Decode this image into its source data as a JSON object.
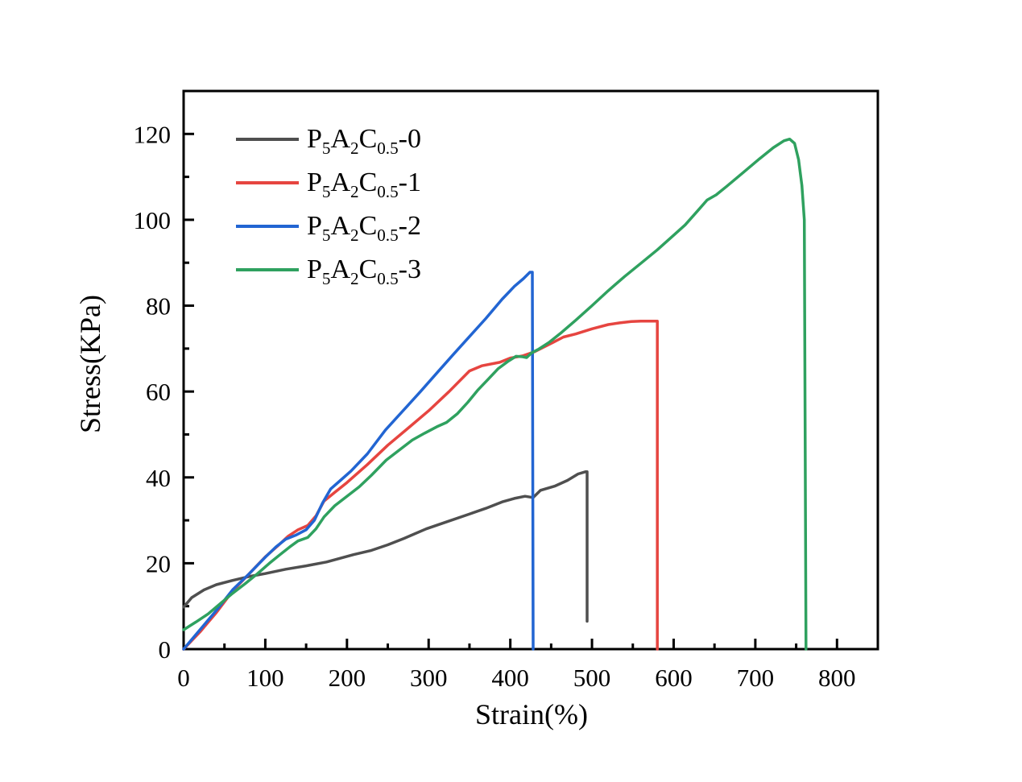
{
  "chart_data": {
    "type": "line",
    "title": "",
    "xlabel": "Strain(%)",
    "ylabel": "Stress(KPa)",
    "xlim": [
      0,
      850
    ],
    "ylim": [
      0,
      130
    ],
    "x_major_ticks": [
      0,
      100,
      200,
      300,
      400,
      500,
      600,
      700,
      800
    ],
    "x_minor_step": 50,
    "y_major_ticks": [
      0,
      20,
      40,
      60,
      80,
      100,
      120
    ],
    "y_minor_step": 10,
    "grid": false,
    "legend_position": "top-left-inside",
    "axis_color": "#000000",
    "series": [
      {
        "name": "P5A2C0.5-0",
        "label_parts": [
          [
            "P",
            "5"
          ],
          [
            "A",
            "2"
          ],
          [
            "C",
            "0.5"
          ],
          [
            "-0",
            null
          ]
        ],
        "color": "#4f4f4f",
        "points": [
          [
            0,
            9.8
          ],
          [
            10,
            12
          ],
          [
            25,
            13.8
          ],
          [
            40,
            15
          ],
          [
            60,
            16
          ],
          [
            80,
            16.9
          ],
          [
            100,
            17.6
          ],
          [
            125,
            18.6
          ],
          [
            150,
            19.4
          ],
          [
            175,
            20.3
          ],
          [
            208,
            22
          ],
          [
            230,
            23
          ],
          [
            250,
            24.3
          ],
          [
            270,
            25.8
          ],
          [
            297,
            28
          ],
          [
            320,
            29.5
          ],
          [
            349,
            31.4
          ],
          [
            370,
            32.8
          ],
          [
            390,
            34.3
          ],
          [
            405,
            35.1
          ],
          [
            418,
            35.6
          ],
          [
            428,
            35.3
          ],
          [
            437,
            37
          ],
          [
            455,
            38
          ],
          [
            470,
            39.3
          ],
          [
            483,
            40.8
          ],
          [
            492,
            41.3
          ],
          [
            494,
            41.3
          ],
          [
            494,
            6.5
          ]
        ]
      },
      {
        "name": "P5A2C0.5-1",
        "label_parts": [
          [
            "P",
            "5"
          ],
          [
            "A",
            "2"
          ],
          [
            "C",
            "0.5"
          ],
          [
            "-1",
            null
          ]
        ],
        "color": "#e64540",
        "points": [
          [
            0,
            0
          ],
          [
            20,
            4
          ],
          [
            40,
            8.5
          ],
          [
            60,
            13.5
          ],
          [
            80,
            17.5
          ],
          [
            100,
            21.5
          ],
          [
            115,
            24
          ],
          [
            128,
            26.3
          ],
          [
            140,
            27.8
          ],
          [
            152,
            28.8
          ],
          [
            162,
            31
          ],
          [
            172,
            34.5
          ],
          [
            185,
            36.5
          ],
          [
            200,
            38.8
          ],
          [
            225,
            43
          ],
          [
            250,
            47.5
          ],
          [
            275,
            51.5
          ],
          [
            300,
            55.5
          ],
          [
            325,
            60
          ],
          [
            350,
            64.8
          ],
          [
            365,
            66
          ],
          [
            387,
            66.8
          ],
          [
            400,
            67.8
          ],
          [
            415,
            68.3
          ],
          [
            430,
            69.3
          ],
          [
            453,
            71.5
          ],
          [
            465,
            72.7
          ],
          [
            480,
            73.4
          ],
          [
            500,
            74.6
          ],
          [
            520,
            75.6
          ],
          [
            534,
            76
          ],
          [
            548,
            76.3
          ],
          [
            560,
            76.4
          ],
          [
            580,
            76.4
          ],
          [
            580,
            0
          ]
        ]
      },
      {
        "name": "P5A2C0.5-2",
        "label_parts": [
          [
            "P",
            "5"
          ],
          [
            "A",
            "2"
          ],
          [
            "C",
            "0.5"
          ],
          [
            "-2",
            null
          ]
        ],
        "color": "#2265d2",
        "points": [
          [
            0,
            0
          ],
          [
            20,
            4.5
          ],
          [
            40,
            9
          ],
          [
            60,
            13.8
          ],
          [
            80,
            17.5
          ],
          [
            100,
            21.4
          ],
          [
            113,
            23.8
          ],
          [
            125,
            25.6
          ],
          [
            138,
            26.6
          ],
          [
            150,
            27.8
          ],
          [
            160,
            30
          ],
          [
            170,
            34
          ],
          [
            180,
            37.3
          ],
          [
            192,
            39.3
          ],
          [
            205,
            41.5
          ],
          [
            225,
            45.5
          ],
          [
            247,
            51
          ],
          [
            270,
            55.8
          ],
          [
            290,
            60
          ],
          [
            310,
            64.3
          ],
          [
            330,
            68.6
          ],
          [
            350,
            72.8
          ],
          [
            370,
            77
          ],
          [
            390,
            81.5
          ],
          [
            405,
            84.5
          ],
          [
            416,
            86.3
          ],
          [
            424,
            87.8
          ],
          [
            427,
            87.8
          ],
          [
            428,
            0
          ]
        ]
      },
      {
        "name": "P5A2C0.5-3",
        "label_parts": [
          [
            "P",
            "5"
          ],
          [
            "A",
            "2"
          ],
          [
            "C",
            "0.5"
          ],
          [
            "-3",
            null
          ]
        ],
        "color": "#2fa15f",
        "points": [
          [
            0,
            4.5
          ],
          [
            15,
            6.3
          ],
          [
            30,
            8.2
          ],
          [
            45,
            10.6
          ],
          [
            60,
            13
          ],
          [
            75,
            15.2
          ],
          [
            90,
            17.5
          ],
          [
            105,
            20
          ],
          [
            118,
            22
          ],
          [
            130,
            23.8
          ],
          [
            140,
            25.2
          ],
          [
            152,
            26
          ],
          [
            162,
            28
          ],
          [
            172,
            30.8
          ],
          [
            185,
            33.4
          ],
          [
            200,
            35.6
          ],
          [
            215,
            37.8
          ],
          [
            230,
            40.5
          ],
          [
            248,
            44
          ],
          [
            265,
            46.5
          ],
          [
            280,
            48.7
          ],
          [
            295,
            50.3
          ],
          [
            310,
            51.8
          ],
          [
            322,
            52.8
          ],
          [
            335,
            54.8
          ],
          [
            348,
            57.5
          ],
          [
            360,
            60.3
          ],
          [
            372,
            62.7
          ],
          [
            385,
            65.3
          ],
          [
            397,
            67
          ],
          [
            407,
            68.2
          ],
          [
            415,
            68.1
          ],
          [
            420,
            67.9
          ],
          [
            426,
            69
          ],
          [
            435,
            69.9
          ],
          [
            448,
            71.5
          ],
          [
            463,
            73.8
          ],
          [
            480,
            76.6
          ],
          [
            500,
            80
          ],
          [
            520,
            83.5
          ],
          [
            540,
            86.8
          ],
          [
            560,
            89.9
          ],
          [
            580,
            93
          ],
          [
            600,
            96.4
          ],
          [
            614,
            98.8
          ],
          [
            628,
            101.8
          ],
          [
            641,
            104.6
          ],
          [
            652,
            105.8
          ],
          [
            665,
            107.8
          ],
          [
            685,
            111
          ],
          [
            705,
            114.2
          ],
          [
            722,
            116.8
          ],
          [
            735,
            118.4
          ],
          [
            742,
            118.8
          ],
          [
            748,
            117.8
          ],
          [
            753,
            114
          ],
          [
            757,
            108
          ],
          [
            760,
            100
          ],
          [
            762,
            0
          ]
        ]
      }
    ]
  }
}
